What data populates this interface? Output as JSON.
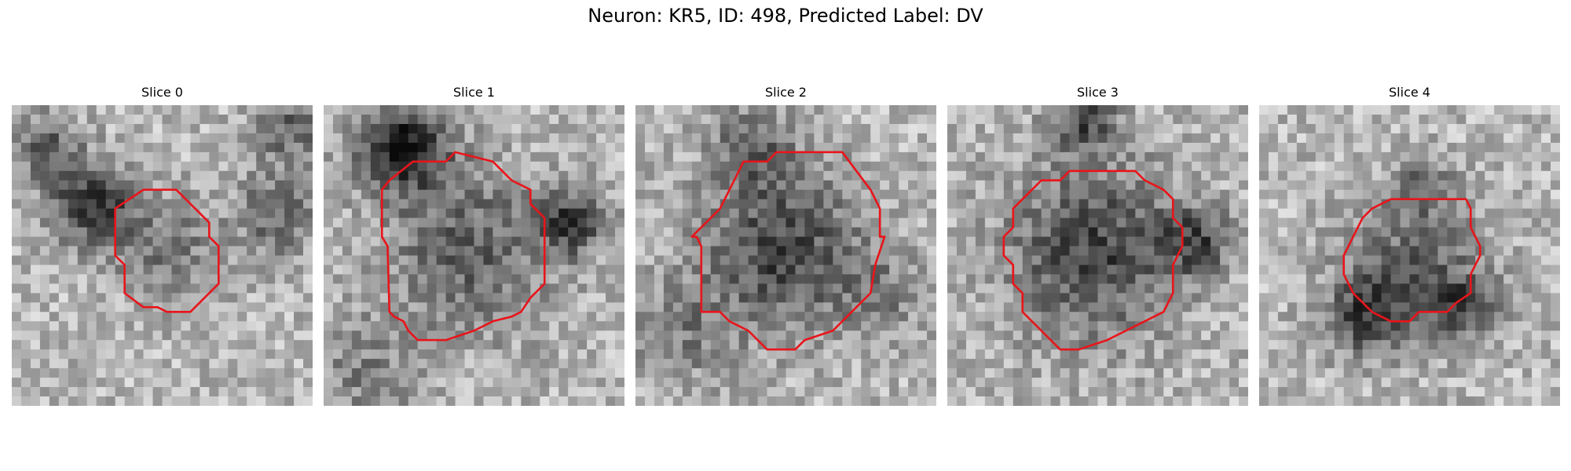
{
  "figure": {
    "title": "Neuron: KR5, ID: 498, Predicted Label: DV",
    "contour_color": "#e8151b",
    "colormap": "gray"
  },
  "slices": [
    {
      "label": "Slice 0"
    },
    {
      "label": "Slice 1"
    },
    {
      "label": "Slice 2"
    },
    {
      "label": "Slice 3"
    },
    {
      "label": "Slice 4"
    }
  ]
}
